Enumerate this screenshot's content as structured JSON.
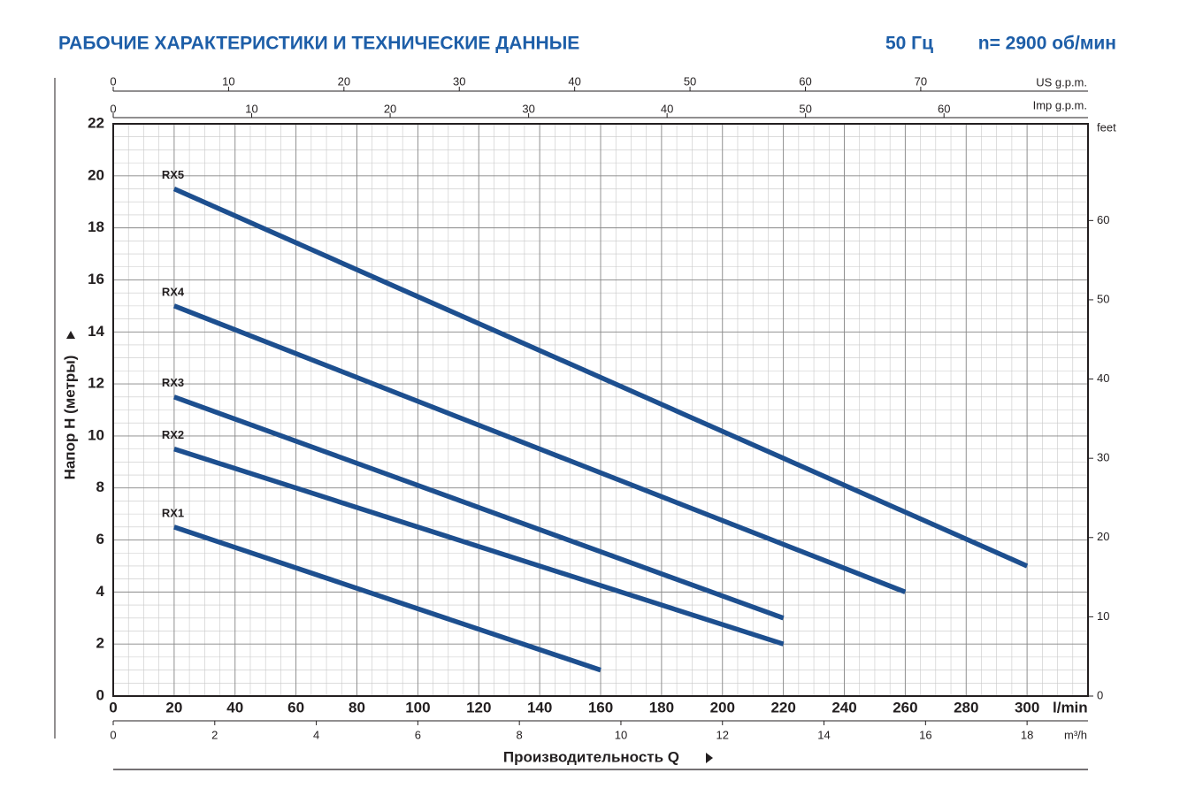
{
  "chart_data": {
    "type": "line",
    "title": "РАБОЧИЕ ХАРАКТЕРИСТИКИ И ТЕХНИЧЕСКИЕ ДАННЫЕ",
    "frequency": "50 Гц",
    "speed": "n= 2900 об/мин",
    "y_label": "Напор H (метры)",
    "x_label": "Производительность Q",
    "x_unit": "l/min",
    "grid": true,
    "color": "#1d4f8f",
    "xlim": [
      0,
      320
    ],
    "xticks": [
      0,
      20,
      40,
      60,
      80,
      100,
      120,
      140,
      160,
      180,
      200,
      220,
      240,
      260,
      280,
      300
    ],
    "ylim": [
      0,
      22
    ],
    "yticks": [
      0,
      2,
      4,
      6,
      8,
      10,
      12,
      14,
      16,
      18,
      20,
      22
    ],
    "y2_unit": "feet",
    "y2lim": [
      0,
      72.2
    ],
    "y2ticks": [
      0,
      10,
      20,
      30,
      40,
      50,
      60
    ],
    "top_axes": [
      {
        "unit": "US g.p.m.",
        "xlim": [
          0,
          84.5
        ],
        "xticks": [
          0,
          10,
          20,
          30,
          40,
          50,
          60,
          70
        ]
      },
      {
        "unit": "Imp g.p.m.",
        "xlim": [
          0,
          70.4
        ],
        "xticks": [
          0,
          10,
          20,
          30,
          40,
          50,
          60
        ]
      }
    ],
    "bottom_axis": {
      "unit": "m³/h",
      "xlim": [
        0,
        19.2
      ],
      "xticks": [
        0,
        2,
        4,
        6,
        8,
        10,
        12,
        14,
        16,
        18
      ]
    },
    "series": [
      {
        "name": "RX1",
        "x": [
          20,
          160
        ],
        "values": [
          6.5,
          1
        ]
      },
      {
        "name": "RX2",
        "x": [
          20,
          220
        ],
        "values": [
          9.5,
          2
        ]
      },
      {
        "name": "RX3",
        "x": [
          20,
          220
        ],
        "values": [
          11.5,
          3
        ]
      },
      {
        "name": "RX4",
        "x": [
          20,
          260
        ],
        "values": [
          15,
          4
        ]
      },
      {
        "name": "RX5",
        "x": [
          20,
          300
        ],
        "values": [
          19.5,
          5
        ]
      }
    ]
  }
}
